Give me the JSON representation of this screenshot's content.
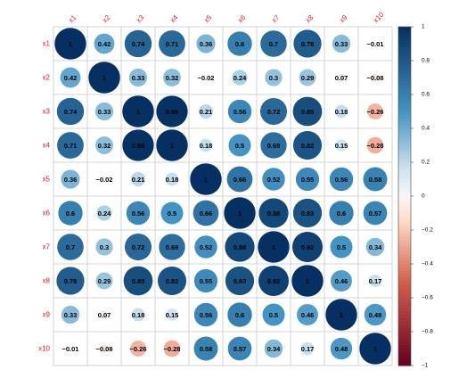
{
  "chart_data": {
    "type": "heatmap",
    "style": "correlation-circles",
    "variables": [
      "x1",
      "x2",
      "x3",
      "x4",
      "x5",
      "x6",
      "x7",
      "x8",
      "x9",
      "x10"
    ],
    "matrix": [
      [
        1,
        0.42,
        0.74,
        0.71,
        0.36,
        0.6,
        0.7,
        0.78,
        0.33,
        -0.01
      ],
      [
        0.42,
        1,
        0.33,
        0.32,
        -0.02,
        0.24,
        0.3,
        0.29,
        0.07,
        -0.08
      ],
      [
        0.74,
        0.33,
        1,
        0.99,
        0.21,
        0.56,
        0.72,
        0.85,
        0.18,
        -0.26
      ],
      [
        0.71,
        0.32,
        0.99,
        1,
        0.18,
        0.5,
        0.69,
        0.82,
        0.15,
        -0.28
      ],
      [
        0.36,
        -0.02,
        0.21,
        0.18,
        1,
        0.66,
        0.52,
        0.55,
        0.56,
        0.58
      ],
      [
        0.6,
        0.24,
        0.56,
        0.5,
        0.66,
        1,
        0.88,
        0.83,
        0.6,
        0.57
      ],
      [
        0.7,
        0.3,
        0.72,
        0.69,
        0.52,
        0.88,
        1,
        0.92,
        0.5,
        0.34
      ],
      [
        0.78,
        0.29,
        0.85,
        0.82,
        0.55,
        0.83,
        0.92,
        1,
        0.46,
        0.17
      ],
      [
        0.33,
        0.07,
        0.18,
        0.15,
        0.56,
        0.6,
        0.5,
        0.46,
        1,
        0.48
      ],
      [
        -0.01,
        -0.08,
        -0.26,
        -0.28,
        0.58,
        0.57,
        0.34,
        0.17,
        0.48,
        1
      ]
    ],
    "colorbar": {
      "ticks": [
        1,
        0.8,
        0.6,
        0.4,
        0.2,
        0,
        -0.2,
        -0.4,
        -0.6,
        -0.8,
        -1
      ],
      "range": [
        -1,
        1
      ],
      "colors": {
        "neg_strong": "#67001f",
        "neg_mid": "#d6604d",
        "neg_light": "#fddbc7",
        "zero": "#f7f7f7",
        "pos_light": "#d1e5f0",
        "pos_mid": "#4393c3",
        "pos_strong": "#053061"
      }
    },
    "label_color": "#e41a1c",
    "grid": true
  }
}
